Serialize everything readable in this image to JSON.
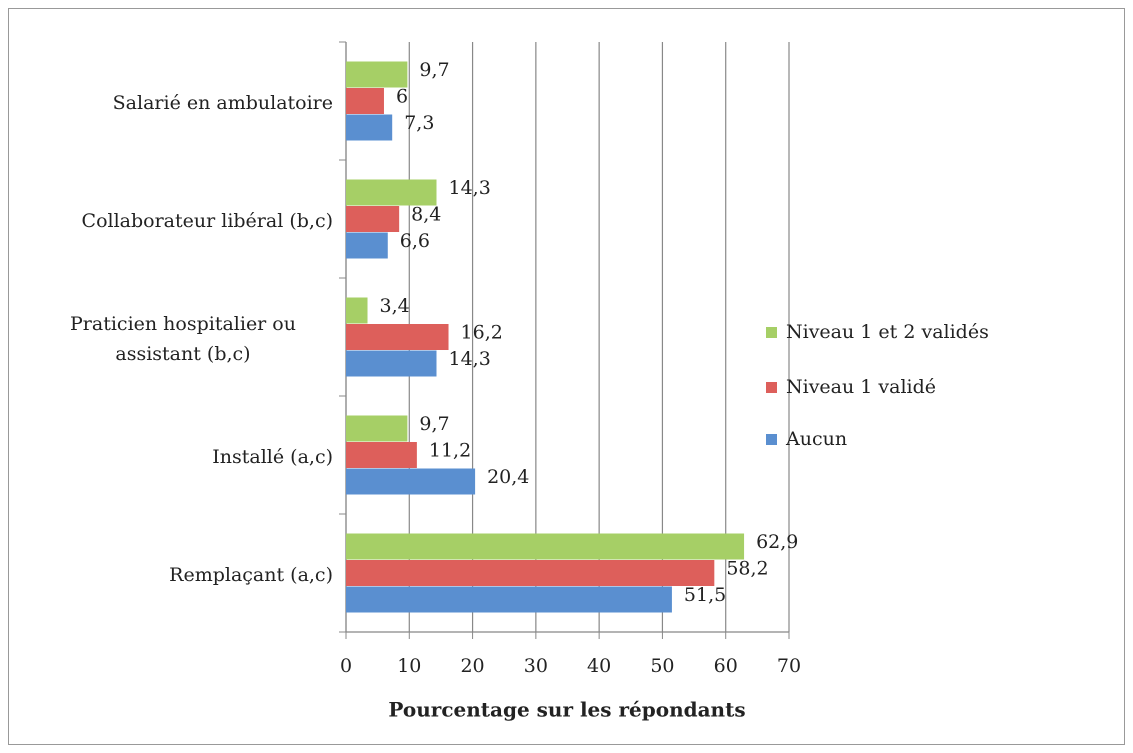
{
  "chart_data": {
    "type": "bar",
    "orientation": "horizontal",
    "xlabel": "Pourcentage sur les répondants",
    "categories": [
      "Salarié en ambulatoire",
      "Collaborateur libéral (b,c)",
      "Praticien hospitalier ou assistant (b,c)",
      "Installé (a,c)",
      "Remplaçant (a,c)"
    ],
    "series": [
      {
        "name": "Niveau 1 et 2 validés",
        "color": "#a6cf66",
        "values": [
          9.7,
          14.3,
          3.4,
          9.7,
          62.9
        ],
        "value_labels": [
          "9,7",
          "14,3",
          "3,4",
          "9,7",
          "62,9"
        ]
      },
      {
        "name": "Niveau 1 validé",
        "color": "#dd5f5b",
        "values": [
          6,
          8.4,
          16.2,
          11.2,
          58.2
        ],
        "value_labels": [
          "6",
          "8,4",
          "16,2",
          "11,2",
          "58,2"
        ]
      },
      {
        "name": "Aucun",
        "color": "#5a8fd0",
        "values": [
          7.3,
          6.6,
          14.3,
          20.4,
          51.5
        ],
        "value_labels": [
          "7,3",
          "6,6",
          "14,3",
          "20,4",
          "51,5"
        ]
      }
    ],
    "xlim": [
      0,
      70
    ],
    "xticks": [
      0,
      10,
      20,
      30,
      40,
      50,
      60,
      70
    ],
    "grid": true,
    "legend": "right"
  }
}
